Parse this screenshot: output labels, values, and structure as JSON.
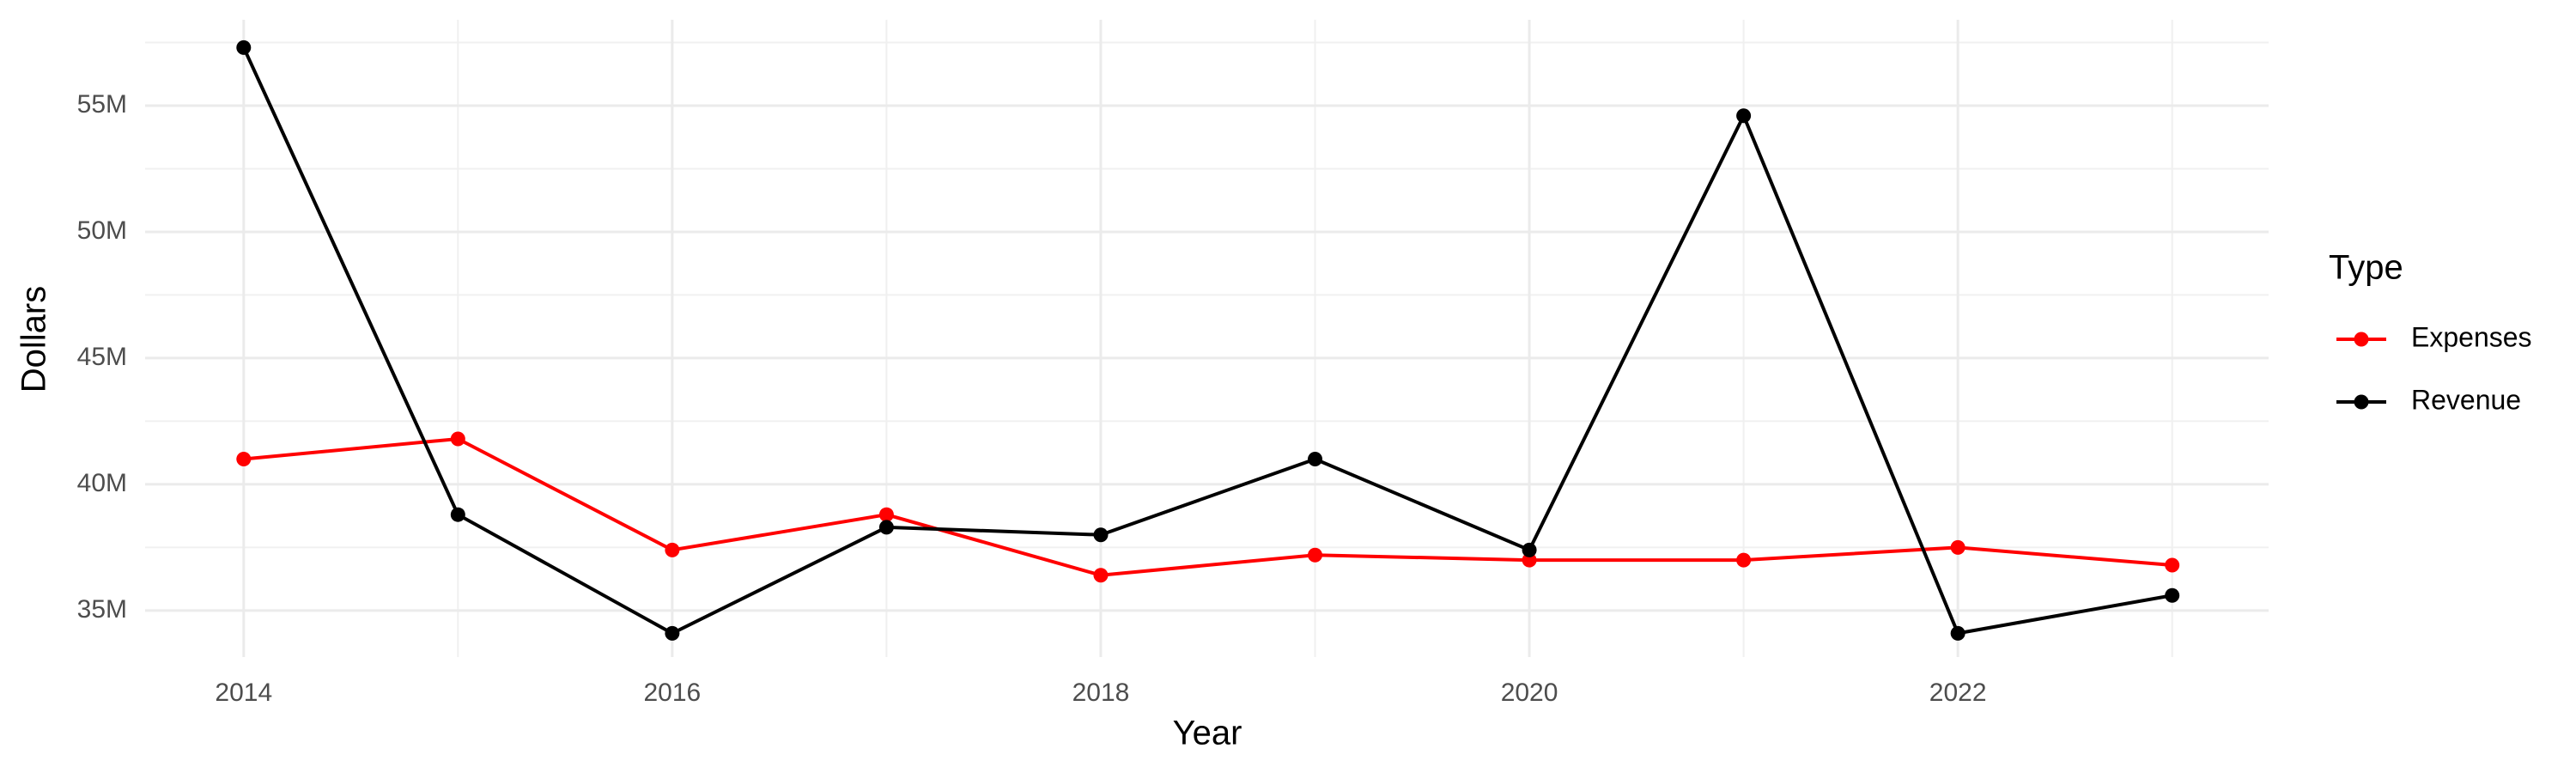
{
  "chart_data": {
    "type": "line",
    "x_label": "Year",
    "y_label": "Dollars",
    "legend_title": "Type",
    "x": [
      2014,
      2015,
      2016,
      2017,
      2018,
      2019,
      2020,
      2021,
      2022,
      2023
    ],
    "series": [
      {
        "name": "Expenses",
        "color": "#ff0000",
        "values": [
          41.0,
          41.8,
          37.4,
          38.8,
          36.4,
          37.2,
          37.0,
          37.0,
          37.5,
          36.8
        ]
      },
      {
        "name": "Revenue",
        "color": "#000000",
        "values": [
          57.3,
          38.8,
          34.1,
          38.3,
          38.0,
          41.0,
          37.4,
          54.6,
          34.1,
          35.6
        ]
      }
    ],
    "xlim": [
      2013.54,
      2023.45
    ],
    "xticks": [
      2014,
      2016,
      2018,
      2020,
      2022
    ],
    "ylim": [
      33.16,
      58.4
    ],
    "yticks": [
      {
        "value": 35,
        "label": "35M"
      },
      {
        "value": 40,
        "label": "40M"
      },
      {
        "value": 45,
        "label": "45M"
      },
      {
        "value": 50,
        "label": "50M"
      },
      {
        "value": 55,
        "label": "55M"
      }
    ],
    "grid": true,
    "legend": "right"
  }
}
